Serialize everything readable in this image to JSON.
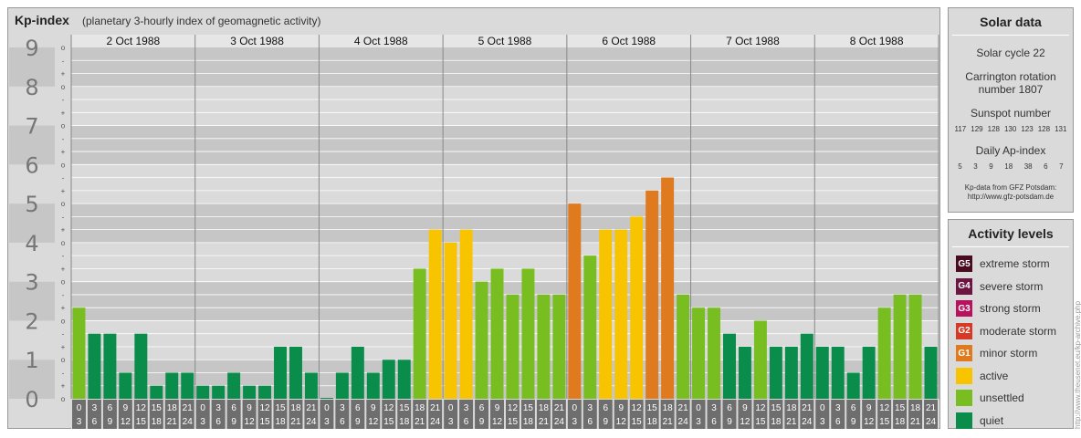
{
  "header": {
    "title": "Kp-index",
    "subtitle": "(planetary 3-hourly index of geomagnetic activity)"
  },
  "chart_data": {
    "type": "bar",
    "title": "Kp-index",
    "subtitle": "(planetary 3-hourly index of geomagnetic activity)",
    "ylim": [
      0,
      9
    ],
    "y_ticks": [
      "0",
      "1",
      "2",
      "3",
      "4",
      "5",
      "6",
      "7",
      "8",
      "9"
    ],
    "sub_ticks": [
      "o",
      "+",
      "-"
    ],
    "days": [
      "2 Oct 1988",
      "3 Oct 1988",
      "4 Oct 1988",
      "5 Oct 1988",
      "6 Oct 1988",
      "7 Oct 1988",
      "8 Oct 1988"
    ],
    "interval_start_labels": [
      "0",
      "3",
      "6",
      "9",
      "12",
      "15",
      "18",
      "21"
    ],
    "interval_end_labels": [
      "3",
      "6",
      "9",
      "12",
      "15",
      "18",
      "21",
      "24"
    ],
    "values": [
      2.333,
      1.667,
      1.667,
      0.667,
      1.667,
      0.333,
      0.667,
      0.667,
      0.333,
      0.333,
      0.667,
      0.333,
      0.333,
      1.333,
      1.333,
      0.667,
      0.0,
      0.667,
      1.333,
      0.667,
      1.0,
      1.0,
      3.333,
      4.333,
      4.0,
      4.333,
      3.0,
      3.333,
      2.667,
      3.333,
      2.667,
      2.667,
      5.0,
      3.667,
      4.333,
      4.333,
      4.667,
      5.333,
      5.667,
      2.667,
      2.333,
      2.333,
      1.667,
      1.333,
      2.0,
      1.333,
      1.333,
      1.667,
      1.333,
      1.333,
      0.667,
      1.333,
      2.333,
      2.667,
      2.667,
      1.333
    ],
    "colors": {
      "quiet": "#0a8c4a",
      "unsettled": "#78be21",
      "active": "#f8c400",
      "minor": "#e07a1f",
      "moderate": "#d63a26",
      "strong": "#b8125e",
      "severe": "#6e1440",
      "extreme": "#4a0a20",
      "band_dark": "#c6c6c6",
      "band_light": "#dadada",
      "axis_label_bg": "#6e6e6e",
      "grid_line": "#ffffff",
      "day_line": "#888888"
    }
  },
  "solar": {
    "title": "Solar data",
    "cycle": "Solar cycle 22",
    "carrington_line1": "Carrington rotation",
    "carrington_line2": "number 1807",
    "sunspot_label": "Sunspot number",
    "sunspot_values": [
      "117",
      "129",
      "128",
      "130",
      "123",
      "128",
      "131"
    ],
    "ap_label": "Daily Ap-index",
    "ap_values": [
      "5",
      "3",
      "9",
      "18",
      "38",
      "6",
      "7"
    ],
    "source_line1": "Kp-data from GFZ Potsdam:",
    "source_line2": "http://www.gfz-potsdam.de"
  },
  "activity": {
    "title": "Activity levels",
    "items": [
      {
        "badge": "G5",
        "label": "extreme storm",
        "color": "#4a0a20"
      },
      {
        "badge": "G4",
        "label": "severe storm",
        "color": "#6e1440"
      },
      {
        "badge": "G3",
        "label": "strong storm",
        "color": "#b8125e"
      },
      {
        "badge": "G2",
        "label": "moderate storm",
        "color": "#d63a26"
      },
      {
        "badge": "G1",
        "label": "minor storm",
        "color": "#e07a1f"
      },
      {
        "badge": "",
        "label": "active",
        "color": "#f8c400"
      },
      {
        "badge": "",
        "label": "unsettled",
        "color": "#78be21"
      },
      {
        "badge": "",
        "label": "quiet",
        "color": "#0a8c4a"
      }
    ]
  },
  "credit": "http://www.theusenet.eu/kp-archive.php"
}
